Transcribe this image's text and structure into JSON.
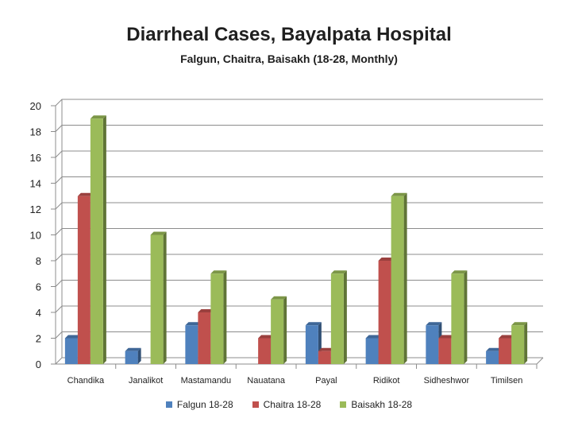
{
  "chart_data": {
    "type": "bar",
    "title": "Diarrheal Cases, Bayalpata Hospital",
    "subtitle": "Falgun, Chaitra, Baisakh (18-28, Monthly)",
    "categories": [
      "Chandika",
      "Janalikot",
      "Mastamandu",
      "Nauatana",
      "Payal",
      "Ridikot",
      "Sidheshwor",
      "Timilsen"
    ],
    "series": [
      {
        "name": "Falgun 18-28",
        "values": [
          2,
          1,
          3,
          0,
          3,
          2,
          3,
          1
        ],
        "color": "#4F81BD"
      },
      {
        "name": "Chaitra 18-28",
        "values": [
          13,
          0,
          4,
          2,
          1,
          8,
          2,
          2
        ],
        "color": "#C0504D"
      },
      {
        "name": "Baisakh 18-28",
        "values": [
          19,
          10,
          7,
          5,
          7,
          13,
          7,
          3
        ],
        "color": "#9BBB59"
      }
    ],
    "ylim": [
      0,
      20
    ],
    "yticks": [
      0,
      2,
      4,
      6,
      8,
      10,
      12,
      14,
      16,
      18,
      20
    ],
    "grid": true,
    "legend_position": "bottom",
    "style": "3d-column"
  }
}
